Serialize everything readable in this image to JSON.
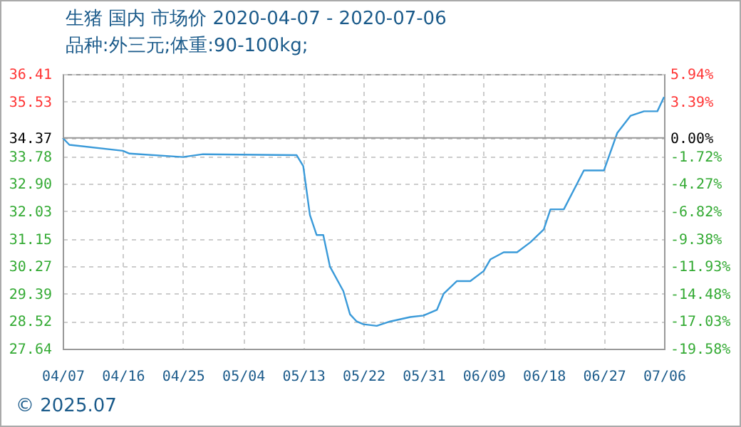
{
  "chart_data": {
    "type": "line",
    "title": "生猪 国内 市场价 2020-04-07 - 2020-07-06",
    "subtitle": "品种:外三元;体重:90-100kg;",
    "x": [
      "2020-04-07",
      "2020-04-08",
      "2020-04-16",
      "2020-04-17",
      "2020-04-25",
      "2020-04-28",
      "2020-05-12",
      "2020-05-13",
      "2020-05-14",
      "2020-05-15",
      "2020-05-16",
      "2020-05-17",
      "2020-05-19",
      "2020-05-20",
      "2020-05-21",
      "2020-05-22",
      "2020-05-24",
      "2020-05-26",
      "2020-05-29",
      "2020-05-31",
      "2020-06-02",
      "2020-06-03",
      "2020-06-05",
      "2020-06-07",
      "2020-06-09",
      "2020-06-10",
      "2020-06-12",
      "2020-06-14",
      "2020-06-16",
      "2020-06-18",
      "2020-06-19",
      "2020-06-21",
      "2020-06-24",
      "2020-06-27",
      "2020-06-29",
      "2020-07-01",
      "2020-07-03",
      "2020-07-05",
      "2020-07-06"
    ],
    "series": [
      {
        "color": "#3a9ad9",
        "values": [
          34.37,
          34.15,
          33.96,
          33.87,
          33.76,
          33.85,
          33.82,
          33.47,
          31.91,
          31.27,
          31.27,
          30.26,
          29.48,
          28.74,
          28.51,
          28.42,
          28.37,
          28.51,
          28.65,
          28.7,
          28.88,
          29.39,
          29.8,
          29.8,
          30.12,
          30.49,
          30.72,
          30.72,
          31.04,
          31.45,
          32.09,
          32.09,
          33.33,
          33.33,
          34.53,
          35.08,
          35.22,
          35.22,
          35.68
        ]
      }
    ],
    "xlim": [
      "2020-04-07",
      "2020-07-06"
    ],
    "xticks": [
      {
        "value": "2020-04-07",
        "label": "04/07"
      },
      {
        "value": "2020-04-16",
        "label": "04/16"
      },
      {
        "value": "2020-04-25",
        "label": "04/25"
      },
      {
        "value": "2020-05-04",
        "label": "05/04"
      },
      {
        "value": "2020-05-13",
        "label": "05/13"
      },
      {
        "value": "2020-05-22",
        "label": "05/22"
      },
      {
        "value": "2020-05-31",
        "label": "05/31"
      },
      {
        "value": "2020-06-09",
        "label": "06/09"
      },
      {
        "value": "2020-06-18",
        "label": "06/18"
      },
      {
        "value": "2020-06-27",
        "label": "06/27"
      },
      {
        "value": "2020-07-06",
        "label": "07/06"
      }
    ],
    "ylim": [
      27.64,
      36.41
    ],
    "yticks": [
      27.64,
      28.52,
      29.39,
      30.27,
      31.15,
      32.03,
      {
        "value": 32.9,
        "label": "32.90"
      },
      33.78,
      34.37,
      35.53,
      36.41
    ],
    "y2lim": [
      -19.58,
      5.94
    ],
    "y2ticks": [
      {
        "value": -19.58,
        "label": "-19.58%"
      },
      {
        "value": -17.03,
        "label": "-17.03%"
      },
      {
        "value": -14.48,
        "label": "-14.48%"
      },
      {
        "value": -11.93,
        "label": "-11.93%"
      },
      {
        "value": -9.38,
        "label": "-9.38%"
      },
      {
        "value": -6.82,
        "label": "-6.82%"
      },
      {
        "value": -4.27,
        "label": "-4.27%"
      },
      {
        "value": -1.72,
        "label": "-1.72%"
      },
      {
        "value": 0,
        "label": "0.00%"
      },
      {
        "value": 3.39,
        "label": "3.39%"
      },
      {
        "value": 5.94,
        "label": "5.94%"
      }
    ],
    "ref_lines": [
      {
        "axis": "y2",
        "value": 0,
        "color": "#999999"
      }
    ],
    "grid": true,
    "annotations": [
      "© 2025.07"
    ]
  }
}
